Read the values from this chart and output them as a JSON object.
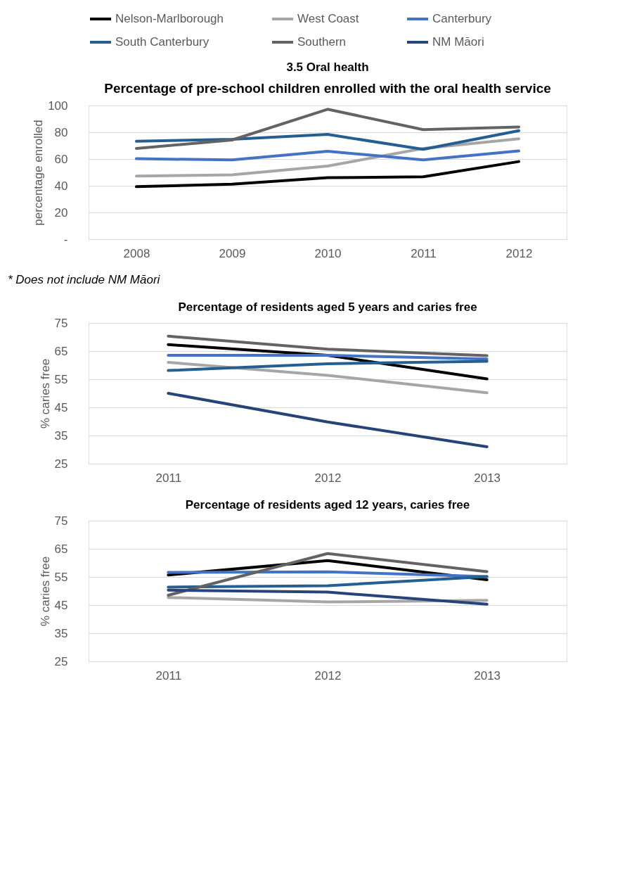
{
  "chart_data": [
    {
      "type": "line",
      "title": "3.5  Oral health",
      "subtitle": "Percentage of pre-school children enrolled with the oral health service",
      "ylabel": "percentage enrolled",
      "categories": [
        "2008",
        "2009",
        "2010",
        "2011",
        "2012"
      ],
      "series": [
        {
          "name": "Nelson-Marlborough",
          "color": "#000000",
          "values": [
            39.3,
            41.2,
            46,
            46.7,
            58.1
          ]
        },
        {
          "name": "West Coast",
          "color": "#a6a6a6",
          "values": [
            47.2,
            48.1,
            54.7,
            67.9,
            75.1
          ]
        },
        {
          "name": "Canterbury",
          "color": "#4472c4",
          "values": [
            60.2,
            59.3,
            65.8,
            59.3,
            66
          ]
        },
        {
          "name": "South Canterbury",
          "color": "#255e91",
          "values": [
            73.3,
            74.7,
            78.4,
            67.2,
            81.2
          ]
        },
        {
          "name": "Southern",
          "color": "#636363",
          "values": [
            67.9,
            74.2,
            97.2,
            82,
            84
          ]
        },
        {
          "name": "NM Māori",
          "color": "#264478",
          "values": [
            null,
            null,
            null,
            null,
            null
          ]
        }
      ],
      "ylim": [
        0,
        100
      ],
      "yticks": [
        {
          "value": 0,
          "label": "-"
        },
        20,
        40,
        60,
        80,
        100
      ],
      "grid": "y",
      "legend": "top",
      "marker": "none",
      "line_style": "solid",
      "annotations": [
        "* Does not include NM Māori"
      ]
    },
    {
      "type": "line",
      "title": "Percentage of residents aged 5 years and caries free",
      "ylabel": "% caries free",
      "categories": [
        "2011",
        "2012",
        "2013"
      ],
      "series": [
        {
          "color": "#000000",
          "values": [
            67.3,
            63.5,
            55.1
          ]
        },
        {
          "color": "#a6a6a6",
          "values": [
            61,
            56.4,
            50.2
          ]
        },
        {
          "color": "#4472c4",
          "values": [
            63.5,
            63.5,
            62.2
          ]
        },
        {
          "color": "#255e91",
          "values": [
            58.1,
            60.5,
            61.4
          ]
        },
        {
          "color": "#636363",
          "values": [
            70.3,
            65.7,
            63.4
          ]
        },
        {
          "color": "#264478",
          "values": [
            50,
            39.8,
            31
          ]
        }
      ],
      "ylim": [
        25,
        75
      ],
      "yticks": [
        25,
        35,
        45,
        55,
        65,
        75
      ],
      "grid": "y",
      "marker": "none",
      "line_style": "solid"
    },
    {
      "type": "line",
      "title": "Percentage of residents aged 12 years, caries free",
      "ylabel": "% caries free",
      "categories": [
        "2011",
        "2012",
        "2013"
      ],
      "series": [
        {
          "color": "#000000",
          "values": [
            55.7,
            60.8,
            54
          ]
        },
        {
          "color": "#a6a6a6",
          "values": [
            47.7,
            46.1,
            46.7
          ]
        },
        {
          "color": "#4472c4",
          "values": [
            56.6,
            56.8,
            55.1
          ]
        },
        {
          "color": "#255e91",
          "values": [
            51.4,
            51.9,
            55.1
          ]
        },
        {
          "color": "#636363",
          "values": [
            48.5,
            63.3,
            56.9
          ]
        },
        {
          "color": "#264478",
          "values": [
            50.3,
            49.6,
            45.3
          ]
        }
      ],
      "ylim": [
        25,
        75
      ],
      "yticks": [
        25,
        35,
        45,
        55,
        65,
        75
      ],
      "grid": "y",
      "marker": "none",
      "line_style": "solid"
    }
  ]
}
